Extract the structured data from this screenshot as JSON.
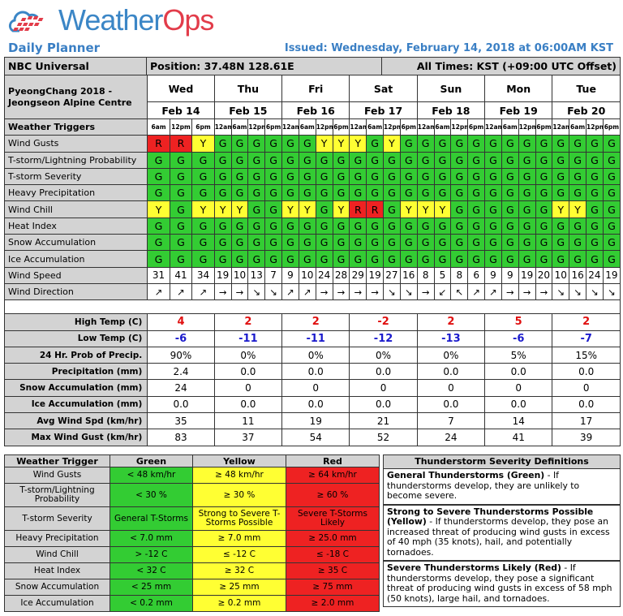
{
  "header": {
    "logo_text_1": "Weather",
    "logo_text_2": "Ops",
    "title": "Daily Planner",
    "issued": "Issued: Wednesday, February 14, 2018 at 06:00AM KST"
  },
  "info": {
    "client": "NBC Universal",
    "position": "Position: 37.48N 128.61E",
    "times": "All Times: KST (+09:00 UTC Offset)",
    "location": "PyeongChang 2018 - Jeongseon Alpine Centre"
  },
  "days": [
    {
      "name": "Wed",
      "date": "Feb 14",
      "times": [
        "6am",
        "12pm",
        "6pm"
      ]
    },
    {
      "name": "Thu",
      "date": "Feb 15",
      "times": [
        "12am",
        "6am",
        "12pm",
        "6pm"
      ]
    },
    {
      "name": "Fri",
      "date": "Feb 16",
      "times": [
        "12am",
        "6am",
        "12pm",
        "6pm"
      ]
    },
    {
      "name": "Sat",
      "date": "Feb 17",
      "times": [
        "12am",
        "6am",
        "12pm",
        "6pm"
      ]
    },
    {
      "name": "Sun",
      "date": "Feb 18",
      "times": [
        "12am",
        "6am",
        "12pm",
        "6pm"
      ]
    },
    {
      "name": "Mon",
      "date": "Feb 19",
      "times": [
        "12am",
        "6am",
        "12pm",
        "6pm"
      ]
    },
    {
      "name": "Tue",
      "date": "Feb 20",
      "times": [
        "12am",
        "6am",
        "12pm",
        "6pm"
      ]
    }
  ],
  "triggers_label": "Weather Triggers",
  "triggers": [
    {
      "label": "Wind Gusts",
      "values": [
        "R",
        "R",
        "Y",
        "G",
        "G",
        "G",
        "G",
        "G",
        "G",
        "Y",
        "Y",
        "Y",
        "G",
        "Y",
        "G",
        "G",
        "G",
        "G",
        "G",
        "G",
        "G",
        "G",
        "G",
        "G",
        "G",
        "G",
        "G"
      ]
    },
    {
      "label": "T-storm/Lightning Probability",
      "values": [
        "G",
        "G",
        "G",
        "G",
        "G",
        "G",
        "G",
        "G",
        "G",
        "G",
        "G",
        "G",
        "G",
        "G",
        "G",
        "G",
        "G",
        "G",
        "G",
        "G",
        "G",
        "G",
        "G",
        "G",
        "G",
        "G",
        "G"
      ]
    },
    {
      "label": "T-storm Severity",
      "values": [
        "G",
        "G",
        "G",
        "G",
        "G",
        "G",
        "G",
        "G",
        "G",
        "G",
        "G",
        "G",
        "G",
        "G",
        "G",
        "G",
        "G",
        "G",
        "G",
        "G",
        "G",
        "G",
        "G",
        "G",
        "G",
        "G",
        "G"
      ]
    },
    {
      "label": "Heavy Precipitation",
      "values": [
        "G",
        "G",
        "G",
        "G",
        "G",
        "G",
        "G",
        "G",
        "G",
        "G",
        "G",
        "G",
        "G",
        "G",
        "G",
        "G",
        "G",
        "G",
        "G",
        "G",
        "G",
        "G",
        "G",
        "G",
        "G",
        "G",
        "G"
      ]
    },
    {
      "label": "Wind Chill",
      "values": [
        "Y",
        "G",
        "Y",
        "Y",
        "Y",
        "G",
        "G",
        "Y",
        "Y",
        "G",
        "Y",
        "R",
        "R",
        "G",
        "Y",
        "Y",
        "Y",
        "G",
        "G",
        "G",
        "G",
        "G",
        "G",
        "Y",
        "Y",
        "G",
        "G"
      ]
    },
    {
      "label": "Heat Index",
      "values": [
        "G",
        "G",
        "G",
        "G",
        "G",
        "G",
        "G",
        "G",
        "G",
        "G",
        "G",
        "G",
        "G",
        "G",
        "G",
        "G",
        "G",
        "G",
        "G",
        "G",
        "G",
        "G",
        "G",
        "G",
        "G",
        "G",
        "G"
      ]
    },
    {
      "label": "Snow Accumulation",
      "values": [
        "G",
        "G",
        "G",
        "G",
        "G",
        "G",
        "G",
        "G",
        "G",
        "G",
        "G",
        "G",
        "G",
        "G",
        "G",
        "G",
        "G",
        "G",
        "G",
        "G",
        "G",
        "G",
        "G",
        "G",
        "G",
        "G",
        "G"
      ]
    },
    {
      "label": "Ice Accumulation",
      "values": [
        "G",
        "G",
        "G",
        "G",
        "G",
        "G",
        "G",
        "G",
        "G",
        "G",
        "G",
        "G",
        "G",
        "G",
        "G",
        "G",
        "G",
        "G",
        "G",
        "G",
        "G",
        "G",
        "G",
        "G",
        "G",
        "G",
        "G"
      ]
    }
  ],
  "wind_speed": {
    "label": "Wind Speed",
    "values": [
      "31",
      "41",
      "34",
      "19",
      "10",
      "13",
      "7",
      "9",
      "10",
      "24",
      "28",
      "29",
      "19",
      "27",
      "16",
      "8",
      "5",
      "8",
      "6",
      "9",
      "9",
      "19",
      "20",
      "10",
      "16",
      "24",
      "19"
    ]
  },
  "wind_direction": {
    "label": "Wind Direction",
    "values": [
      "↗",
      "↗",
      "↗",
      "→",
      "→",
      "↘",
      "↘",
      "↗",
      "↗",
      "→",
      "→",
      "→",
      "→",
      "↘",
      "↘",
      "→",
      "↙",
      "↖",
      "↗",
      "↗",
      "→",
      "→",
      "→",
      "↘",
      "↘",
      "↘",
      "↘"
    ]
  },
  "daily": [
    {
      "label": "High Temp (C)",
      "cls": "hi",
      "values": [
        "4",
        "2",
        "2",
        "-2",
        "2",
        "5",
        "2"
      ]
    },
    {
      "label": "Low Temp (C)",
      "cls": "lo",
      "values": [
        "-6",
        "-11",
        "-11",
        "-12",
        "-13",
        "-6",
        "-7"
      ]
    },
    {
      "label": "24 Hr. Prob of Precip.",
      "values": [
        "90%",
        "0%",
        "0%",
        "0%",
        "0%",
        "5%",
        "15%"
      ]
    },
    {
      "label": "Precipitation (mm)",
      "values": [
        "2.4",
        "0.0",
        "0.0",
        "0.0",
        "0.0",
        "0.0",
        "0.0"
      ]
    },
    {
      "label": "Snow Accumulation (mm)",
      "values": [
        "24",
        "0",
        "0",
        "0",
        "0",
        "0",
        "0"
      ]
    },
    {
      "label": "Ice Accumulation (mm)",
      "values": [
        "0.0",
        "0.0",
        "0.0",
        "0.0",
        "0.0",
        "0.0",
        "0.0"
      ]
    },
    {
      "label": "Avg Wind Spd (km/hr)",
      "values": [
        "35",
        "11",
        "19",
        "21",
        "7",
        "14",
        "17"
      ]
    },
    {
      "label": "Max Wind Gust (km/hr)",
      "values": [
        "83",
        "37",
        "54",
        "52",
        "24",
        "41",
        "39"
      ]
    }
  ],
  "legend": {
    "headers": [
      "Weather Trigger",
      "Green",
      "Yellow",
      "Red"
    ],
    "rows": [
      [
        "Wind Gusts",
        "< 48 km/hr",
        "≥ 48 km/hr",
        "≥ 64 km/hr"
      ],
      [
        "T-storm/Lightning Probability",
        "< 30 %",
        "≥ 30 %",
        "≥ 60 %"
      ],
      [
        "T-storm Severity",
        "General T-Storms",
        "Strong to Severe T-Storms Possible",
        "Severe T-Storms Likely"
      ],
      [
        "Heavy Precipitation",
        "< 7.0 mm",
        "≥ 7.0 mm",
        "≥ 25.0 mm"
      ],
      [
        "Wind Chill",
        "> -12 C",
        "≤ -12 C",
        "≤ -18 C"
      ],
      [
        "Heat Index",
        "< 32 C",
        "≥ 32 C",
        "≥ 35 C"
      ],
      [
        "Snow Accumulation",
        "< 25 mm",
        "≥ 25 mm",
        "≥ 75 mm"
      ],
      [
        "Ice Accumulation",
        "< 0.2 mm",
        "≥ 0.2 mm",
        "≥ 2.0 mm"
      ]
    ]
  },
  "definitions": {
    "title": "Thunderstorm Severity Definitions",
    "items": [
      {
        "term": "General Thunderstorms (Green)",
        "text": " - If thunderstorms develop, they are unlikely to become severe."
      },
      {
        "term": "Strong to Severe Thunderstorms Possible (Yellow)",
        "text": " - If thunderstorms develop, they pose an increased threat of producing wind gusts in excess of 40 mph (35 knots), hail, and potentially tornadoes."
      },
      {
        "term": "Severe Thunderstorms Likely (Red)",
        "text": " - If thunderstorms develop, they pose a significant threat of producing wind gusts in excess of 58 mph (50 knots), large hail, and tornadoes."
      }
    ]
  },
  "colors": {
    "G": "#33cc33",
    "Y": "#ffff33",
    "R": "#ee2222",
    "brand_blue": "#3b86c6",
    "brand_red": "#e23c4a"
  }
}
